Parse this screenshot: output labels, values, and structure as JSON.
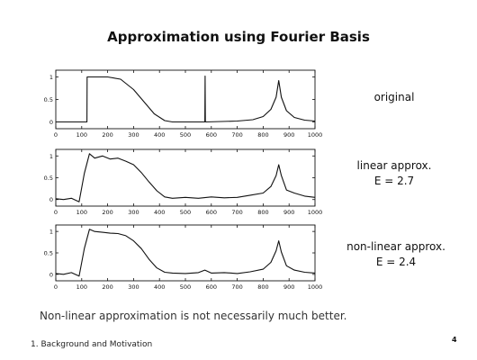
{
  "slide": {
    "title": "Approximation using Fourier Basis",
    "caption": "Non-linear approximation is not necessarily much better.",
    "footer": "1. Background and Motivation",
    "page_number": "4"
  },
  "colors": {
    "line": "#111111",
    "axis": "#111111",
    "background": "#ffffff"
  },
  "chart_data": [
    {
      "type": "line",
      "label_lines": [
        "original"
      ],
      "xlim": [
        0,
        1000
      ],
      "ylim": [
        -0.15,
        1.15
      ],
      "xticks": [
        0,
        100,
        200,
        300,
        400,
        500,
        600,
        700,
        800,
        900,
        1000
      ],
      "xtick_labels": [
        "0",
        "100",
        "200",
        "300",
        "400",
        "500",
        "600",
        "700",
        "800",
        "900",
        "1000"
      ],
      "yticks": [
        0,
        0.5,
        1
      ],
      "ytick_labels": [
        "0",
        "0.5",
        "1"
      ],
      "grid": false,
      "series": [
        {
          "x": [
            0,
            120,
            121,
            200,
            250,
            300,
            340,
            380,
            420,
            450,
            575,
            576,
            577,
            578,
            700,
            760,
            800,
            830,
            850,
            860,
            870,
            890,
            920,
            960,
            1000
          ],
          "y": [
            0,
            0,
            1,
            1,
            0.95,
            0.72,
            0.45,
            0.18,
            0.03,
            0,
            0,
            1.02,
            0.02,
            0,
            0.02,
            0.05,
            0.12,
            0.28,
            0.55,
            0.92,
            0.55,
            0.25,
            0.1,
            0.04,
            0.02
          ]
        }
      ]
    },
    {
      "type": "line",
      "label_lines": [
        "linear approx.",
        "E = 2.7"
      ],
      "xlim": [
        0,
        1000
      ],
      "ylim": [
        -0.15,
        1.15
      ],
      "xticks": [
        0,
        100,
        200,
        300,
        400,
        500,
        600,
        700,
        800,
        900,
        1000
      ],
      "xtick_labels": [
        "0",
        "100",
        "200",
        "300",
        "400",
        "500",
        "600",
        "700",
        "800",
        "900",
        "1000"
      ],
      "yticks": [
        0,
        0.5,
        1
      ],
      "ytick_labels": [
        "0",
        "0.5",
        "1"
      ],
      "grid": false,
      "series": [
        {
          "x": [
            0,
            30,
            60,
            90,
            110,
            130,
            150,
            180,
            210,
            240,
            270,
            300,
            330,
            360,
            390,
            420,
            450,
            500,
            550,
            600,
            650,
            700,
            750,
            800,
            830,
            850,
            860,
            870,
            890,
            920,
            960,
            1000
          ],
          "y": [
            0.02,
            0.0,
            0.03,
            -0.05,
            0.6,
            1.05,
            0.95,
            1.0,
            0.93,
            0.95,
            0.88,
            0.8,
            0.62,
            0.4,
            0.2,
            0.06,
            0.03,
            0.05,
            0.03,
            0.06,
            0.04,
            0.05,
            0.1,
            0.15,
            0.3,
            0.55,
            0.8,
            0.55,
            0.22,
            0.15,
            0.08,
            0.05
          ]
        }
      ]
    },
    {
      "type": "line",
      "label_lines": [
        "non-linear approx.",
        "E = 2.4"
      ],
      "xlim": [
        0,
        1000
      ],
      "ylim": [
        -0.15,
        1.15
      ],
      "xticks": [
        0,
        100,
        200,
        300,
        400,
        500,
        600,
        700,
        800,
        900,
        1000
      ],
      "xtick_labels": [
        "0",
        "100",
        "200",
        "300",
        "400",
        "500",
        "600",
        "700",
        "800",
        "900",
        "1000"
      ],
      "yticks": [
        0,
        0.5,
        1
      ],
      "ytick_labels": [
        "0",
        "0.5",
        "1"
      ],
      "grid": false,
      "series": [
        {
          "x": [
            0,
            30,
            60,
            90,
            110,
            130,
            150,
            180,
            210,
            240,
            270,
            300,
            330,
            360,
            390,
            420,
            450,
            500,
            550,
            575,
            600,
            650,
            700,
            750,
            800,
            830,
            850,
            860,
            870,
            890,
            920,
            960,
            1000
          ],
          "y": [
            0.02,
            0.0,
            0.04,
            -0.04,
            0.6,
            1.05,
            1.0,
            0.98,
            0.96,
            0.95,
            0.9,
            0.78,
            0.6,
            0.35,
            0.15,
            0.05,
            0.03,
            0.02,
            0.04,
            0.1,
            0.03,
            0.04,
            0.02,
            0.06,
            0.12,
            0.28,
            0.55,
            0.78,
            0.52,
            0.2,
            0.1,
            0.05,
            0.03
          ]
        }
      ]
    }
  ]
}
